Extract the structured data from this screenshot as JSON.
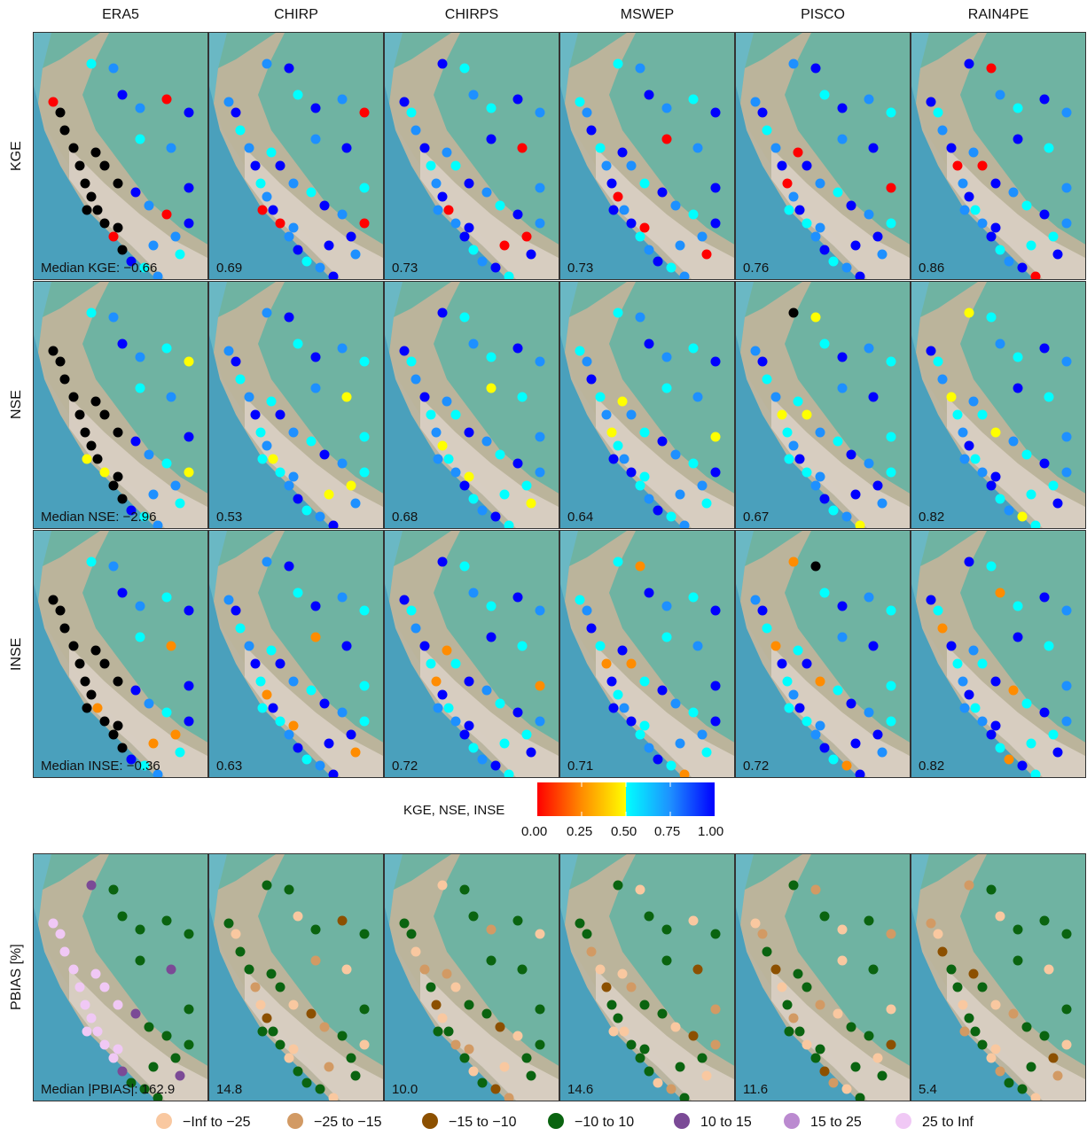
{
  "products": [
    "ERA5",
    "CHIRP",
    "CHIRPS",
    "MSWEP",
    "PISCO",
    "RAIN4PE"
  ],
  "metrics": [
    "KGE",
    "NSE",
    "INSE",
    "PBIAS [%]"
  ],
  "panel_values": {
    "KGE": [
      "Median KGE: −0.66",
      "0.69",
      "0.73",
      "0.73",
      "0.76",
      "0.86"
    ],
    "NSE": [
      "Median NSE: −2.96",
      "0.53",
      "0.68",
      "0.64",
      "0.67",
      "0.82"
    ],
    "INSE": [
      "Median INSE: −0.36",
      "0.63",
      "0.72",
      "0.71",
      "0.72",
      "0.82"
    ],
    "PBIAS": [
      "Median |PBIAS|: 162.9",
      "14.8",
      "10.0",
      "14.6",
      "11.6",
      "5.4"
    ]
  },
  "colorbar": {
    "title": "KGE, NSE, INSE",
    "ticks": [
      "0.00",
      "0.25",
      "0.50",
      "0.75",
      "1.00"
    ],
    "colors": [
      "#ff0000",
      "#ff8c00",
      "#ffff00",
      "#00ffff",
      "#1e90ff",
      "#0000ff"
    ]
  },
  "pbias_legend": [
    {
      "label": "−Inf to −25",
      "color": "#f9c8a0"
    },
    {
      "label": "−25 to −15",
      "color": "#d29a64"
    },
    {
      "label": "−15 to −10",
      "color": "#8c5000"
    },
    {
      "label": "−10 to 10",
      "color": "#0a6410"
    },
    {
      "label": "10 to 15",
      "color": "#7b4a96"
    },
    {
      "label": "15 to 25",
      "color": "#bb8ad0"
    },
    {
      "label": "25 to Inf",
      "color": "#f0c8f5"
    }
  ],
  "map_colors": {
    "ocean": "#6ab8c4",
    "ocean_deep": "#4aa0bc",
    "lowland": "#6fb3a2",
    "andes": "#c9b49a",
    "andes_high": "#e0d6cc",
    "outline": "#333333"
  }
}
